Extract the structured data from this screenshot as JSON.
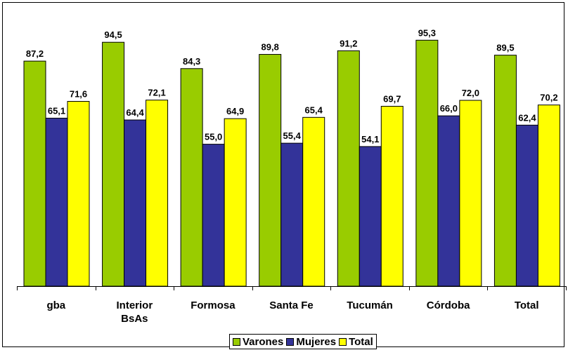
{
  "chart_data": {
    "type": "bar",
    "categories": [
      "gba",
      "Interior BsAs",
      "Formosa",
      "Santa Fe",
      "Tucumán",
      "Córdoba",
      "Total"
    ],
    "category_lines": [
      [
        "gba"
      ],
      [
        "Interior",
        "BsAs"
      ],
      [
        "Formosa"
      ],
      [
        "Santa Fe"
      ],
      [
        "Tucumán"
      ],
      [
        "Córdoba"
      ],
      [
        "Total"
      ]
    ],
    "series": [
      {
        "name": "Varones",
        "color": "#99CC00",
        "values": [
          87.2,
          94.5,
          84.3,
          89.8,
          91.2,
          95.3,
          89.5
        ],
        "labels": [
          "87,2",
          "94,5",
          "84,3",
          "89,8",
          "91,2",
          "95,3",
          "89,5"
        ]
      },
      {
        "name": "Mujeres",
        "color": "#333399",
        "values": [
          65.1,
          64.4,
          55.0,
          55.4,
          54.1,
          66.0,
          62.4
        ],
        "labels": [
          "65,1",
          "64,4",
          "55,0",
          "55,4",
          "54,1",
          "66,0",
          "62,4"
        ]
      },
      {
        "name": "Total",
        "color": "#FFFF00",
        "values": [
          71.6,
          72.1,
          64.9,
          65.4,
          69.7,
          72.0,
          70.2
        ],
        "labels": [
          "71,6",
          "72,1",
          "64,9",
          "65,4",
          "69,7",
          "72,0",
          "70,2"
        ]
      }
    ],
    "ylim": [
      0,
      100
    ],
    "grid": false,
    "legend_position": "bottom",
    "title": "",
    "xlabel": "",
    "ylabel": ""
  }
}
